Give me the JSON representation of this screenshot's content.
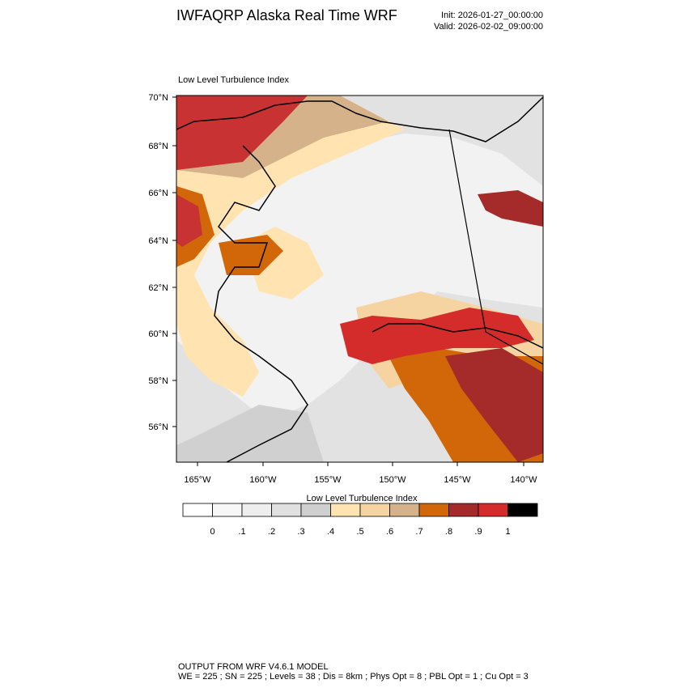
{
  "header": {
    "title": "IWFAQRP Alaska Real Time WRF",
    "init": "Init: 2026-01-27_00:00:00",
    "valid": "Valid: 2026-02-02_09:00:00"
  },
  "map": {
    "title": "Low Level Turbulence Index",
    "lat_labels": [
      "70°N",
      "68°N",
      "66°N",
      "64°N",
      "62°N",
      "60°N",
      "58°N",
      "56°N"
    ],
    "lon_labels": [
      "165°W",
      "160°W",
      "155°W",
      "150°W",
      "145°W",
      "140°W"
    ]
  },
  "colorbar": {
    "title": "Low Level Turbulence Index",
    "colors": [
      "#ffffff",
      "#f7f7f7",
      "#eeeeee",
      "#e0e0e0",
      "#cfcfcf",
      "#ffe4b2",
      "#f5d4a2",
      "#d5b28a",
      "#d2670a",
      "#a52a2a",
      "#d42b2b",
      "#000000"
    ],
    "labels": [
      "0",
      ".1",
      ".2",
      ".3",
      ".4",
      ".5",
      ".6",
      ".7",
      ".8",
      ".9",
      "1"
    ]
  },
  "footer": {
    "line1": "OUTPUT FROM WRF V4.6.1 MODEL",
    "line2": "WE = 225 ; SN = 225 ; Levels = 38 ; Dis = 8km ; Phys Opt = 8 ; PBL Opt = 1 ; Cu Opt = 3"
  }
}
